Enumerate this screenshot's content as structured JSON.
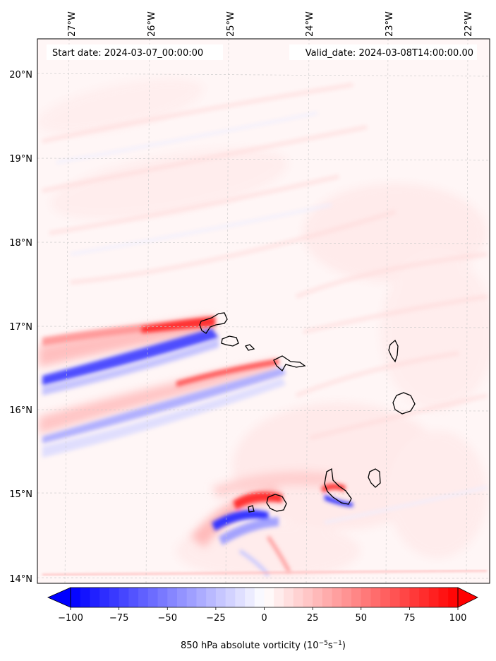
{
  "map": {
    "start_date_text": "Start date: 2024-03-07_00:00:00",
    "valid_date_text": "Valid_date: 2024-03-08T14:00:00.00",
    "lon_labels": [
      "27°W",
      "26°W",
      "25°W",
      "24°W",
      "23°W",
      "22°W"
    ],
    "lat_labels": [
      "20°N",
      "19°N",
      "18°N",
      "17°N",
      "16°N",
      "15°N",
      "14°N"
    ],
    "lon_range": [
      -27.35,
      -21.7
    ],
    "lat_range": [
      13.95,
      20.4
    ],
    "colorbar": {
      "label_main": "850 hPa absolute vorticity (10",
      "label_exp1": "−5",
      "label_mid": "s",
      "label_exp2": "−1",
      "label_end": ")",
      "ticks": [
        "−100",
        "−75",
        "−50",
        "−25",
        "0",
        "25",
        "50",
        "75",
        "100"
      ],
      "tick_values": [
        -100,
        -75,
        -50,
        -25,
        0,
        25,
        50,
        75,
        100
      ],
      "min": -100,
      "max": 100,
      "colormap": "bwr",
      "extend": "both"
    },
    "colors": {
      "negative": "#0000ff",
      "positive": "#ff0000",
      "neutral": "#ffffff"
    }
  }
}
